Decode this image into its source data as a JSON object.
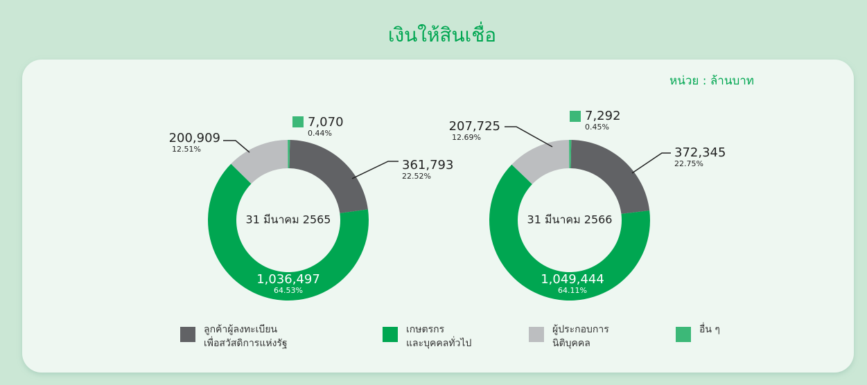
{
  "title": "เงินให้สินเชื่อ",
  "unit": "หน่วย : ล้านบาท",
  "legend": {
    "categories": [
      "ลูกค้าผู้ลงทะเบียน\nเพื่อสวัสดิการแห่งรัฐ",
      "เกษตรกร\nและบุคคลทั่วไป",
      "ผู้ประกอบการ\nนิติบุคคล",
      "อื่น ๆ"
    ],
    "colors": [
      "#616265",
      "#00a651",
      "#bcbec0",
      "#3cb878"
    ]
  },
  "chart_data": [
    {
      "type": "pie",
      "center_label": "31 มีนาคม 2565",
      "values": [
        361793,
        1036497,
        200909,
        7070
      ],
      "value_labels": [
        "361,793",
        "1,036,497",
        "200,909",
        "7,070"
      ],
      "percents": [
        22.52,
        64.53,
        12.51,
        0.44
      ],
      "percent_labels": [
        "22.52%",
        "64.53%",
        "12.51%",
        "0.44%"
      ]
    },
    {
      "type": "pie",
      "center_label": "31 มีนาคม 2566",
      "values": [
        372345,
        1049444,
        207725,
        7292
      ],
      "value_labels": [
        "372,345",
        "1,049,444",
        "207,725",
        "7,292"
      ],
      "percents": [
        22.75,
        64.11,
        12.69,
        0.45
      ],
      "percent_labels": [
        "22.75%",
        "64.11%",
        "12.69%",
        "0.45%"
      ]
    }
  ]
}
